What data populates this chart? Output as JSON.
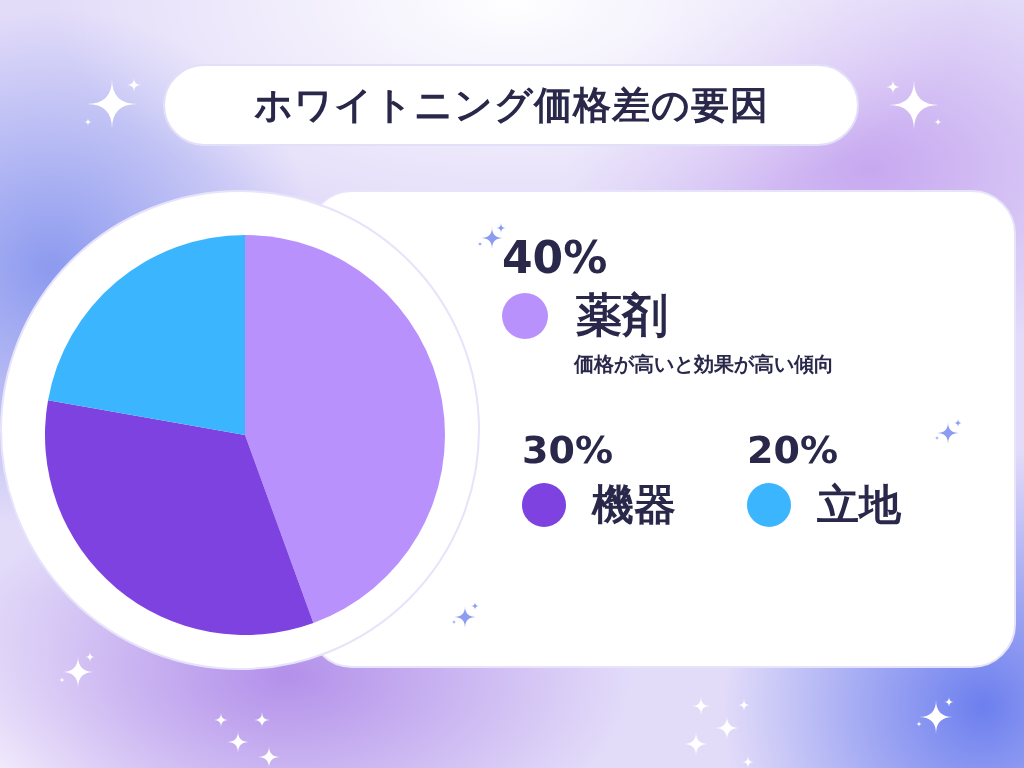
{
  "chart_data": {
    "type": "pie",
    "title": "ホワイトニング価格差の要因",
    "categories": [
      "薬剤",
      "機器",
      "立地"
    ],
    "values": [
      40,
      30,
      20
    ],
    "colors": [
      "#b991fc",
      "#7d42df",
      "#3bb6fe"
    ],
    "value_labels": [
      "40%",
      "30%",
      "20%"
    ],
    "legend": "right",
    "annotations": [
      "価格が高いと効果が高い傾向"
    ]
  }
}
